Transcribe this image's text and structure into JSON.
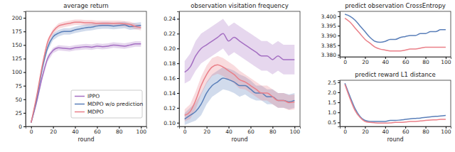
{
  "chart_data": [
    {
      "type": "line",
      "title": "average return",
      "x_label": "round",
      "x": [
        0,
        5,
        10,
        15,
        20,
        25,
        30,
        35,
        40,
        45,
        50,
        55,
        60,
        65,
        70,
        75,
        80,
        85,
        90,
        95,
        100
      ],
      "xlim": [
        -5,
        105
      ],
      "xticks": [
        0,
        20,
        40,
        60,
        80,
        100
      ],
      "ylim": [
        0,
        212
      ],
      "yticks": [
        0,
        25,
        50,
        75,
        100,
        125,
        150,
        175,
        200
      ],
      "grid": false,
      "legend": "lower right",
      "series": [
        {
          "name": "IPPO",
          "color": "#a46fc2",
          "values": [
            7,
            45,
            90,
            125,
            140,
            145,
            144,
            143,
            145,
            146,
            147,
            146,
            148,
            147,
            148,
            150,
            149,
            148,
            150,
            152,
            152
          ],
          "std": [
            1,
            4,
            6,
            6,
            5,
            5,
            5,
            5,
            5,
            5,
            5,
            5,
            5,
            5,
            5,
            5,
            5,
            5,
            5,
            5,
            5
          ]
        },
        {
          "name": "MDPO w/o prediction",
          "color": "#5a7fb9",
          "values": [
            7,
            50,
            105,
            145,
            165,
            172,
            175,
            175,
            178,
            180,
            182,
            183,
            185,
            186,
            186,
            185,
            186,
            187,
            184,
            185,
            186
          ],
          "std": [
            1,
            4,
            6,
            6,
            6,
            6,
            6,
            6,
            6,
            6,
            6,
            6,
            6,
            6,
            6,
            6,
            6,
            6,
            6,
            6,
            6
          ]
        },
        {
          "name": "MDPO",
          "color": "#ea7f88",
          "values": [
            7,
            55,
            110,
            155,
            175,
            185,
            188,
            190,
            192,
            192,
            191,
            191,
            190,
            190,
            190,
            190,
            190,
            189,
            188,
            184,
            182
          ],
          "std": [
            1,
            4,
            6,
            6,
            5,
            5,
            5,
            5,
            5,
            5,
            5,
            5,
            5,
            5,
            5,
            5,
            5,
            5,
            5,
            5,
            5
          ]
        }
      ]
    },
    {
      "type": "line",
      "title": "observation visitation frequency",
      "x_label": "round",
      "x": [
        0,
        5,
        10,
        15,
        20,
        25,
        30,
        35,
        40,
        45,
        50,
        55,
        60,
        65,
        70,
        75,
        80,
        85,
        90,
        95,
        100
      ],
      "xlim": [
        -5,
        105
      ],
      "xticks": [
        0,
        20,
        40,
        60,
        80,
        100
      ],
      "ylim": [
        0.095,
        0.25
      ],
      "yticks": [
        {
          "value": 0.1,
          "label": "0.10"
        },
        0.12,
        0.14,
        0.16,
        0.18,
        {
          "value": 0.2,
          "label": "0.20"
        },
        0.22,
        0.24
      ],
      "grid": false,
      "series": [
        {
          "name": "IPPO",
          "color": "#a46fc2",
          "values": [
            0.168,
            0.175,
            0.19,
            0.2,
            0.205,
            0.21,
            0.215,
            0.22,
            0.21,
            0.215,
            0.21,
            0.205,
            0.2,
            0.195,
            0.19,
            0.19,
            0.185,
            0.19,
            0.185,
            0.185,
            0.185
          ],
          "std": [
            0.015,
            0.018,
            0.02,
            0.02,
            0.02,
            0.02,
            0.02,
            0.02,
            0.02,
            0.02,
            0.02,
            0.02,
            0.02,
            0.02,
            0.02,
            0.02,
            0.02,
            0.02,
            0.02,
            0.02,
            0.02
          ]
        },
        {
          "name": "MDPO w/o prediction",
          "color": "#5a7fb9",
          "values": [
            0.105,
            0.11,
            0.115,
            0.125,
            0.14,
            0.15,
            0.155,
            0.16,
            0.158,
            0.155,
            0.15,
            0.15,
            0.145,
            0.14,
            0.14,
            0.135,
            0.135,
            0.13,
            0.13,
            0.128,
            0.13
          ],
          "std": [
            0.008,
            0.01,
            0.012,
            0.015,
            0.015,
            0.015,
            0.015,
            0.015,
            0.015,
            0.015,
            0.015,
            0.012,
            0.012,
            0.01,
            0.01,
            0.01,
            0.01,
            0.01,
            0.01,
            0.01,
            0.01
          ]
        },
        {
          "name": "MDPO",
          "color": "#ea7f88",
          "values": [
            0.11,
            0.115,
            0.13,
            0.15,
            0.165,
            0.175,
            0.178,
            0.175,
            0.17,
            0.165,
            0.158,
            0.155,
            0.15,
            0.145,
            0.14,
            0.14,
            0.135,
            0.13,
            0.13,
            0.127,
            0.128
          ],
          "std": [
            0.008,
            0.01,
            0.012,
            0.012,
            0.012,
            0.012,
            0.012,
            0.012,
            0.012,
            0.012,
            0.012,
            0.01,
            0.01,
            0.01,
            0.01,
            0.01,
            0.01,
            0.01,
            0.01,
            0.01,
            0.01
          ]
        }
      ]
    },
    {
      "type": "line",
      "title": "predict observation CrossEntropy",
      "x": [
        0,
        5,
        10,
        15,
        20,
        25,
        30,
        35,
        40,
        45,
        50,
        55,
        60,
        65,
        70,
        75,
        80,
        85,
        90,
        95,
        100
      ],
      "xlim": [
        -5,
        105
      ],
      "xticks": [
        0,
        20,
        40,
        60,
        80,
        100
      ],
      "ylim": [
        3.379,
        3.4025
      ],
      "yticks": [
        {
          "value": 3.38,
          "label": "3.380"
        },
        3.385,
        {
          "value": 3.39,
          "label": "3.390"
        },
        3.395,
        {
          "value": 3.4,
          "label": "3.400"
        }
      ],
      "grid": false,
      "series": [
        {
          "name": "MDPO w/o prediction",
          "color": "#5a7fb9",
          "values": [
            3.401,
            3.4,
            3.398,
            3.395,
            3.392,
            3.389,
            3.387,
            3.3865,
            3.387,
            3.388,
            3.388,
            3.389,
            3.3895,
            3.39,
            3.39,
            3.391,
            3.391,
            3.392,
            3.392,
            3.393,
            3.393
          ]
        },
        {
          "name": "MDPO",
          "color": "#ea7f88",
          "values": [
            3.399,
            3.397,
            3.394,
            3.391,
            3.388,
            3.386,
            3.384,
            3.383,
            3.3825,
            3.382,
            3.382,
            3.382,
            3.3825,
            3.383,
            3.383,
            3.3835,
            3.384,
            3.384,
            3.384,
            3.384,
            3.384
          ]
        }
      ]
    },
    {
      "type": "line",
      "title": "predict reward L1 distance",
      "x_label": "round",
      "x": [
        0,
        5,
        10,
        15,
        20,
        25,
        30,
        35,
        40,
        45,
        50,
        55,
        60,
        65,
        70,
        75,
        80,
        85,
        90,
        95,
        100
      ],
      "xlim": [
        -5,
        105
      ],
      "xticks": [
        0,
        20,
        40,
        60,
        80,
        100
      ],
      "ylim": [
        0.3,
        2.6
      ],
      "yticks": [
        0.5,
        {
          "value": 1,
          "label": "1.0"
        },
        1.5,
        {
          "value": 2,
          "label": "2.0"
        },
        2.5
      ],
      "grid": false,
      "series": [
        {
          "name": "MDPO w/o prediction",
          "color": "#5a7fb9",
          "values": [
            2.45,
            1.8,
            1.2,
            0.8,
            0.6,
            0.55,
            0.55,
            0.55,
            0.55,
            0.6,
            0.6,
            0.62,
            0.65,
            0.68,
            0.7,
            0.72,
            0.75,
            0.78,
            0.8,
            0.82,
            0.85
          ]
        },
        {
          "name": "MDPO",
          "color": "#ea7f88",
          "values": [
            2.4,
            1.7,
            1.1,
            0.75,
            0.55,
            0.5,
            0.48,
            0.47,
            0.47,
            0.48,
            0.5,
            0.5,
            0.52,
            0.55,
            0.55,
            0.57,
            0.6,
            0.62,
            0.63,
            0.65,
            0.65
          ]
        }
      ]
    }
  ]
}
